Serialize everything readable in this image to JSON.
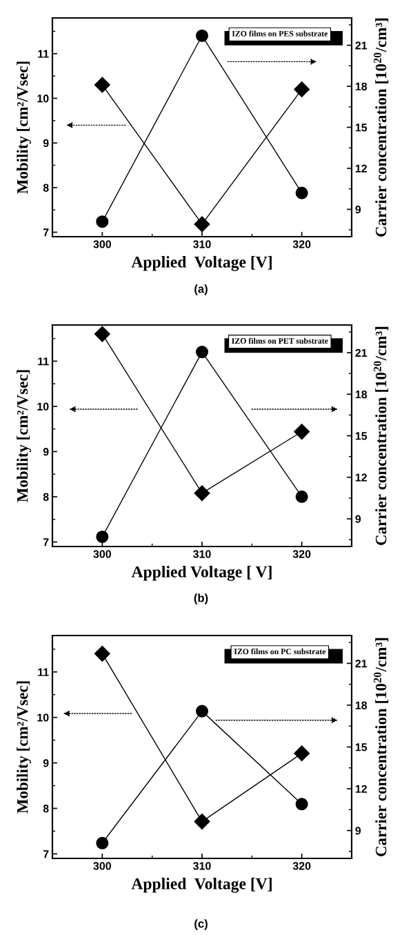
{
  "chart_data": [
    {
      "type": "line",
      "x": [
        300,
        310,
        320
      ],
      "xlim": [
        295,
        325
      ],
      "xticks": [
        300,
        310,
        320
      ],
      "ylim": [
        6.9,
        11.8
      ],
      "yticks": [
        7,
        8,
        9,
        10,
        11
      ],
      "y2lim": [
        7,
        23
      ],
      "y2ticks": [
        9,
        12,
        15,
        18,
        21
      ],
      "xlabel": "Applied  Voltage [V]",
      "ylabel": "Mobility [cm²/Vsec]",
      "y2label": "Carrier concentration [10$^{20}$/cm³]",
      "annotations": [
        "IZO films on PES substrate",
        "(a)"
      ],
      "grid": false,
      "legend": false,
      "line_style": "solid",
      "series": [
        {
          "color": "#000000",
          "marker": "diamond",
          "values": [
            10.3,
            7.18,
            10.2
          ]
        },
        {
          "color": "#000000",
          "marker": "circle",
          "axis": "y2",
          "values": [
            8.1,
            21.7,
            10.2
          ]
        }
      ]
    },
    {
      "type": "line",
      "x": [
        300,
        310,
        320
      ],
      "xlim": [
        295,
        325
      ],
      "xticks": [
        300,
        310,
        320
      ],
      "ylim": [
        6.9,
        11.8
      ],
      "yticks": [
        7,
        8,
        9,
        10,
        11
      ],
      "y2lim": [
        7,
        23
      ],
      "y2ticks": [
        9,
        12,
        15,
        18,
        21
      ],
      "xlabel": "Applied Voltage [ V]",
      "ylabel": "Mobility [cm²/Vsec]",
      "y2label": "Carrier concentration [10$^{20}$/cm³]",
      "annotations": [
        "IZO films on PET substrate",
        "(b)"
      ],
      "grid": false,
      "legend": false,
      "line_style": "solid",
      "series": [
        {
          "color": "#000000",
          "marker": "diamond",
          "values": [
            11.6,
            8.08,
            9.44
          ]
        },
        {
          "color": "#000000",
          "marker": "circle",
          "axis": "y2",
          "values": [
            7.7,
            21.05,
            10.6
          ]
        }
      ]
    },
    {
      "type": "line",
      "x": [
        300,
        310,
        320
      ],
      "xlim": [
        295,
        325
      ],
      "xticks": [
        300,
        310,
        320
      ],
      "ylim": [
        6.9,
        11.8
      ],
      "yticks": [
        7,
        8,
        9,
        10,
        11
      ],
      "y2lim": [
        7,
        23
      ],
      "y2ticks": [
        9,
        12,
        15,
        18,
        21
      ],
      "xlabel": "Applied  Voltage [V]",
      "ylabel": "Mobility [cm²/Vsec]",
      "y2label": "Carrier concentration [10$^{20}$/cm³]",
      "annotations": [
        "IZO films on PC substrate",
        "(c)"
      ],
      "grid": false,
      "legend": false,
      "line_style": "solid",
      "series": [
        {
          "color": "#000000",
          "marker": "diamond",
          "values": [
            11.4,
            7.71,
            9.21
          ]
        },
        {
          "color": "#000000",
          "marker": "circle",
          "axis": "y2",
          "values": [
            8.1,
            17.57,
            10.9
          ]
        }
      ]
    }
  ]
}
